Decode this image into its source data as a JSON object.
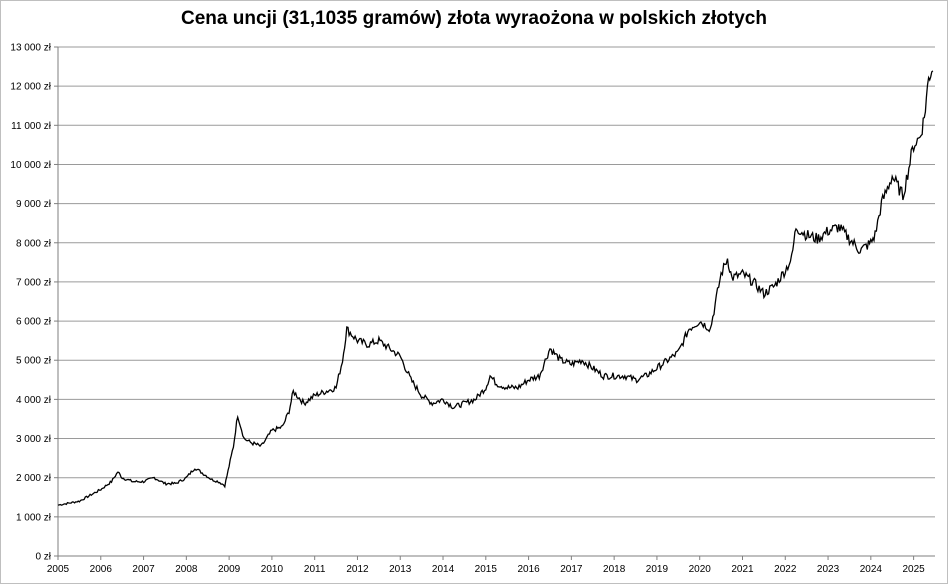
{
  "chart_data": {
    "type": "line",
    "title": "Cena uncji (31,1035 gramów) złota wyraożona w polskich złotych",
    "xlabel": "",
    "ylabel": "",
    "xlim": [
      2005,
      2025.5
    ],
    "ylim": [
      0,
      13000
    ],
    "grid": "horizontal",
    "x_ticks": [
      "2005",
      "2006",
      "2007",
      "2008",
      "2009",
      "2010",
      "2011",
      "2012",
      "2013",
      "2014",
      "2015",
      "2016",
      "2017",
      "2018",
      "2019",
      "2020",
      "2021",
      "2022",
      "2023",
      "2024",
      "2025"
    ],
    "y_ticks": [
      "0 zł",
      "1 000 zł",
      "2 000 zł",
      "3 000 zł",
      "4 000 zł",
      "5 000 zł",
      "6 000 zł",
      "7 000 zł",
      "8 000 zł",
      "9 000 zł",
      "10 000 zł",
      "11 000 zł",
      "12 000 zł",
      "13 000 zł"
    ],
    "series": [
      {
        "x": [
          2005.0,
          2005.25,
          2005.5,
          2005.75,
          2006.0,
          2006.25,
          2006.4,
          2006.5,
          2006.75,
          2007.0,
          2007.25,
          2007.5,
          2007.75,
          2008.0,
          2008.2,
          2008.4,
          2008.6,
          2008.75,
          2008.9,
          2009.0,
          2009.1,
          2009.2,
          2009.35,
          2009.5,
          2009.75,
          2010.0,
          2010.25,
          2010.4,
          2010.5,
          2010.75,
          2011.0,
          2011.25,
          2011.5,
          2011.65,
          2011.75,
          2012.0,
          2012.25,
          2012.5,
          2012.75,
          2013.0,
          2013.25,
          2013.5,
          2013.75,
          2014.0,
          2014.25,
          2014.5,
          2014.75,
          2015.0,
          2015.1,
          2015.25,
          2015.5,
          2015.75,
          2016.0,
          2016.25,
          2016.5,
          2016.75,
          2017.0,
          2017.25,
          2017.5,
          2017.75,
          2018.0,
          2018.25,
          2018.5,
          2018.75,
          2019.0,
          2019.25,
          2019.5,
          2019.75,
          2020.0,
          2020.25,
          2020.5,
          2020.65,
          2020.75,
          2021.0,
          2021.25,
          2021.5,
          2021.75,
          2022.0,
          2022.15,
          2022.25,
          2022.5,
          2022.75,
          2023.0,
          2023.25,
          2023.5,
          2023.75,
          2024.0,
          2024.1,
          2024.25,
          2024.5,
          2024.75,
          2025.0,
          2025.15,
          2025.25,
          2025.35,
          2025.45
        ],
        "values": [
          1300,
          1350,
          1400,
          1550,
          1700,
          1900,
          2150,
          2000,
          1900,
          1900,
          2000,
          1850,
          1850,
          2000,
          2250,
          2100,
          1950,
          1900,
          1800,
          2300,
          2800,
          3600,
          3000,
          2900,
          2800,
          3200,
          3300,
          3700,
          4200,
          3900,
          4100,
          4200,
          4300,
          5000,
          5800,
          5500,
          5400,
          5500,
          5300,
          5100,
          4500,
          4100,
          3900,
          4000,
          3800,
          3900,
          4000,
          4300,
          4600,
          4400,
          4300,
          4300,
          4500,
          4600,
          5300,
          5000,
          4900,
          5000,
          4800,
          4600,
          4600,
          4600,
          4500,
          4600,
          4800,
          5000,
          5200,
          5800,
          6000,
          5800,
          7200,
          7600,
          7100,
          7200,
          7000,
          6700,
          6900,
          7300,
          7600,
          8400,
          8200,
          8100,
          8300,
          8400,
          8100,
          7800,
          8000,
          8200,
          9000,
          9700,
          9200,
          10500,
          10700,
          11200,
          12200,
          12500
        ]
      }
    ]
  }
}
